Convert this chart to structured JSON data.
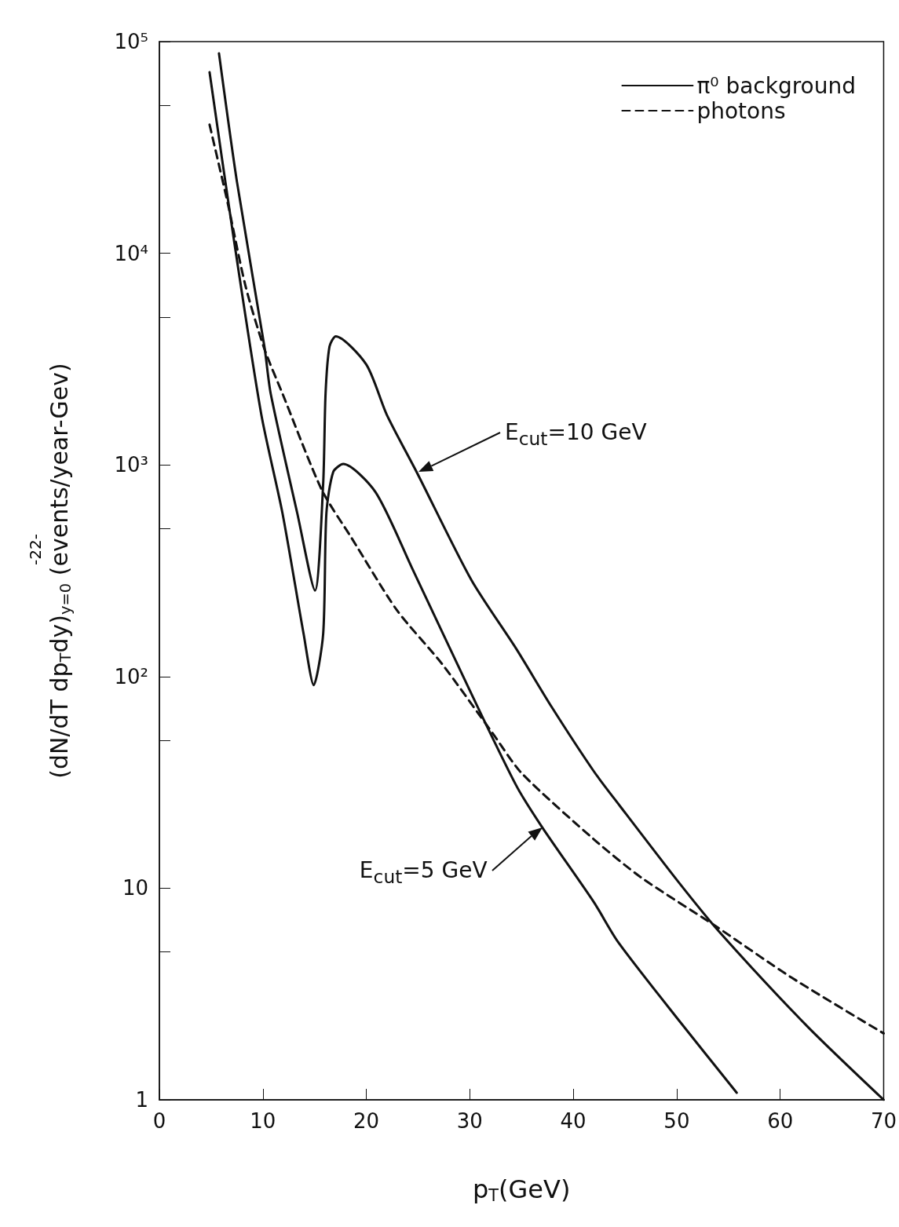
{
  "chart_data": {
    "type": "line",
    "xlabel": "p$_{T}$(GeV)",
    "ylabel": "(dN/dT dp$_{T}$dy)$_{y=0}$ (events/year-Gev)",
    "series": [
      {
        "name": "π⁰ background",
        "color": "#111111",
        "line_style": "solid",
        "x": [
          5.76,
          7.5,
          10.15,
          10.76,
          13.33,
          15.04,
          15.83,
          16.06,
          16.44,
          17.05,
          20.0,
          21.97,
          24.9,
          30.15,
          34.5,
          37.9,
          42.0,
          44.5,
          50.1,
          54.2,
          62.6,
          70
        ],
        "values": [
          88000,
          21700,
          3620,
          2170,
          590,
          255,
          815,
          2170,
          3620,
          4050,
          2980,
          1730,
          918,
          286,
          135,
          72,
          35.6,
          24.5,
          10.8,
          6.15,
          2.23,
          1
        ]
      },
      {
        "color": "#111111",
        "line_style": "solid",
        "x": [
          4.85,
          7.12,
          9.85,
          11.9,
          13.94,
          14.92,
          15.83,
          16.14,
          16.8,
          17.77,
          20.9,
          24.4,
          30.15,
          34.5,
          37.0,
          42.0,
          44.3,
          50.1,
          55.8
        ],
        "values": [
          71700,
          12300,
          1730,
          590,
          159,
          91,
          159,
          590,
          926,
          1010,
          742,
          327,
          83,
          30.5,
          19.4,
          8.58,
          5.6,
          2.41,
          1.08
        ]
      },
      {
        "name": "photons",
        "color": "#111111",
        "line_style": "dashed",
        "x": [
          4.85,
          6.6,
          8.33,
          10.15,
          11.9,
          15.7,
          18.56,
          22.95,
          27.3,
          32.2,
          35.0,
          42.0,
          46.6,
          53.6,
          61.1,
          70
        ],
        "values": [
          40500,
          17300,
          6980,
          3530,
          2170,
          761,
          453,
          206,
          115,
          54,
          35,
          17.0,
          11.2,
          6.7,
          3.78,
          2.06
        ]
      }
    ],
    "xlim": [
      0,
      70
    ],
    "xticks": [
      0,
      10,
      20,
      30,
      40,
      50,
      60,
      70
    ],
    "ylim": [
      1,
      100000
    ],
    "yticks": [
      1,
      {
        "value": 5,
        "label": null
      },
      10,
      {
        "value": 50,
        "label": null
      },
      {
        "value": 100,
        "label": "10²"
      },
      {
        "value": 500,
        "label": null
      },
      {
        "value": 1000,
        "label": "10³"
      },
      {
        "value": 5000,
        "label": null
      },
      {
        "value": 10000,
        "label": "10⁴"
      },
      {
        "value": 50000,
        "label": null
      },
      {
        "value": 100000,
        "label": "10⁵"
      }
    ],
    "log": "y",
    "grid": false,
    "marker": "none",
    "legend": "top right",
    "annotations": [
      "E$_{cut}$=10 GeV",
      {
        "text": "E$_{cut}$=5 GeV",
        "x": 37.0,
        "y": 19.4
      },
      "-22-"
    ]
  }
}
